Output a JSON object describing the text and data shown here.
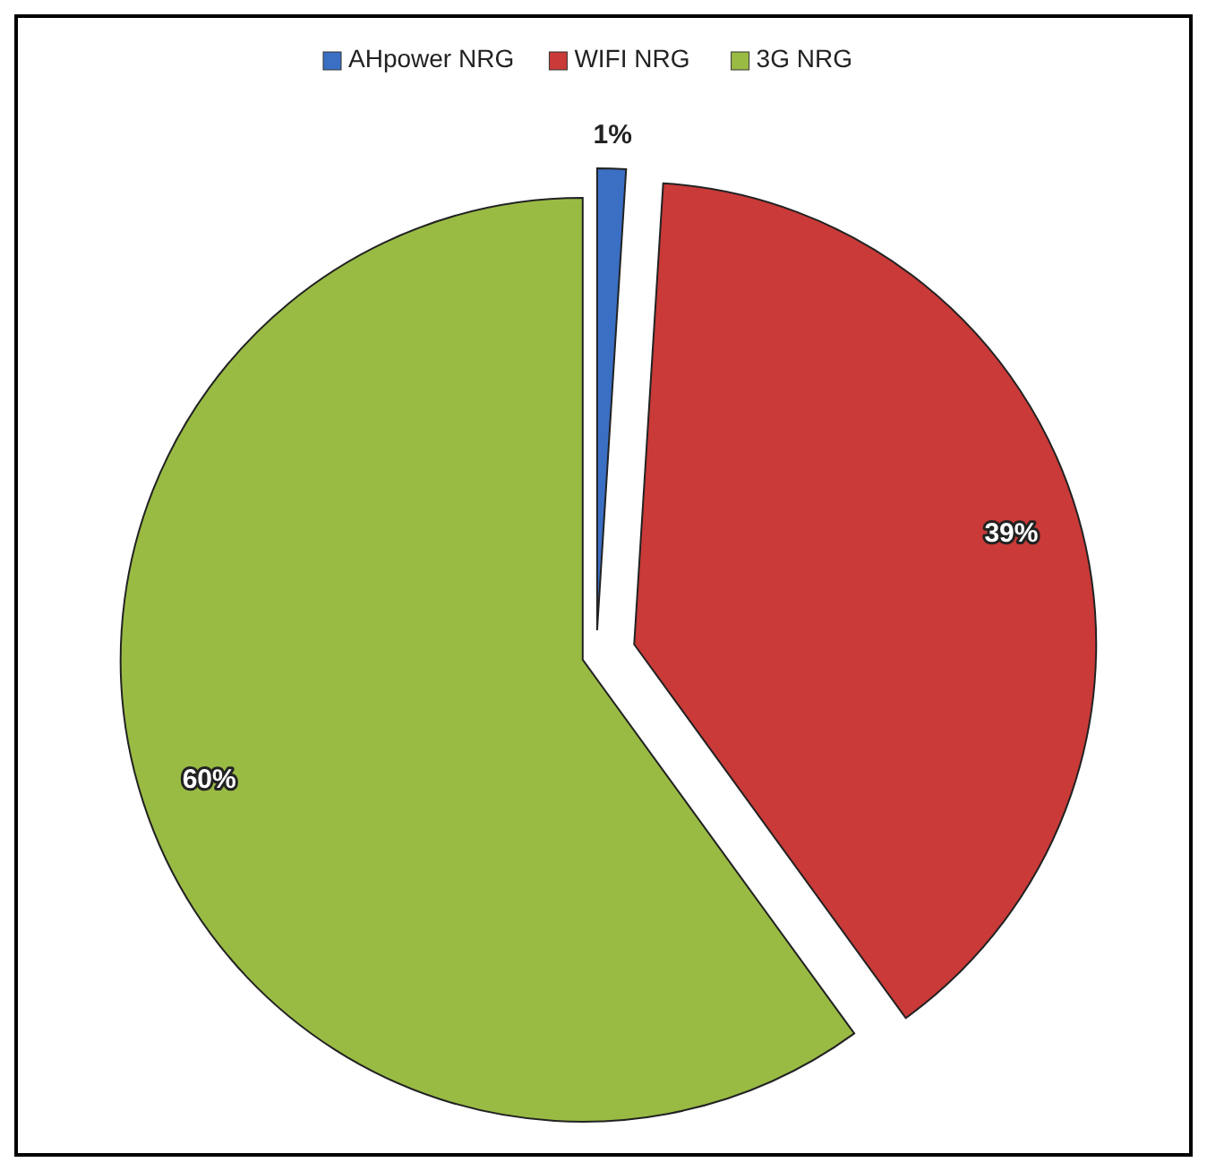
{
  "chart_data": {
    "type": "pie",
    "categories": [
      "AHpower NRG",
      "WIFI NRG",
      "3G NRG"
    ],
    "values": [
      1,
      39,
      60
    ],
    "colors": [
      "#3a6fc4",
      "#c93a38",
      "#99bb44"
    ],
    "value_labels": [
      "1%",
      "39%",
      "60%"
    ],
    "legend": "top"
  }
}
